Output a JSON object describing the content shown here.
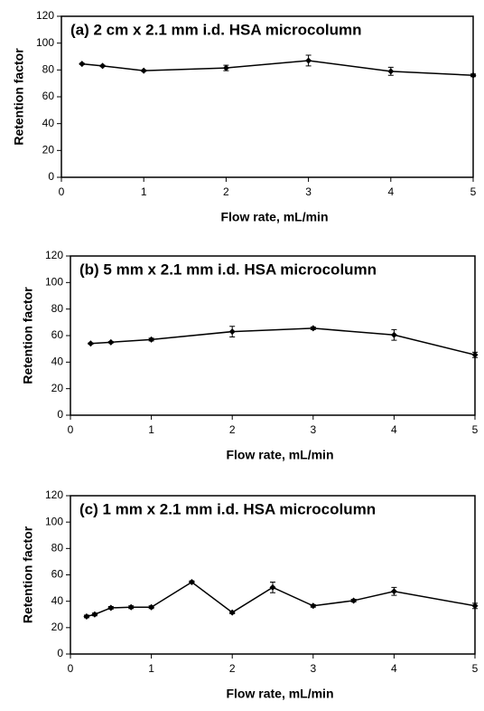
{
  "chart_data": [
    {
      "type": "line",
      "title": "(a) 2 cm x 2.1 mm i.d. HSA microcolumn",
      "xlabel": "Flow rate, mL/min",
      "ylabel": "Retention factor",
      "x": [
        0.25,
        0.5,
        1,
        2,
        3,
        4,
        5
      ],
      "values": [
        84.5,
        83,
        79.5,
        81.5,
        87,
        79,
        76
      ],
      "errors": [
        0.5,
        0.5,
        0.5,
        2,
        4,
        3,
        1
      ],
      "color": "#000000",
      "xlim": [
        0,
        5
      ],
      "ylim": [
        0,
        120
      ],
      "xticks": [
        0,
        1,
        2,
        3,
        4,
        5
      ],
      "yticks": [
        0,
        20,
        40,
        60,
        80,
        100,
        120
      ]
    },
    {
      "type": "line",
      "title": "(b) 5 mm x 2.1 mm i.d. HSA microcolumn",
      "xlabel": "Flow rate, mL/min",
      "ylabel": "Retention factor",
      "x": [
        0.25,
        0.5,
        1,
        2,
        3,
        4,
        5
      ],
      "values": [
        54,
        55,
        57,
        63,
        65.5,
        60.5,
        45.5
      ],
      "errors": [
        0.5,
        0.5,
        1,
        4,
        1,
        4,
        2
      ],
      "color": "#000000",
      "xlim": [
        0,
        5
      ],
      "ylim": [
        0,
        120
      ],
      "xticks": [
        0,
        1,
        2,
        3,
        4,
        5
      ],
      "yticks": [
        0,
        20,
        40,
        60,
        80,
        100,
        120
      ]
    },
    {
      "type": "line",
      "title": "(c) 1 mm x 2.1 mm i.d. HSA microcolumn",
      "xlabel": "Flow rate, mL/min",
      "ylabel": "Retention factor",
      "x": [
        0.2,
        0.3,
        0.5,
        0.75,
        1,
        1.5,
        2,
        2.5,
        3,
        3.5,
        4,
        5
      ],
      "values": [
        28.5,
        30,
        35,
        35.5,
        35.5,
        54.5,
        31.5,
        50.5,
        36.5,
        40.5,
        47.5,
        36.5
      ],
      "errors": [
        1,
        1,
        1,
        1,
        1,
        1,
        1,
        4,
        1,
        1,
        3,
        2
      ],
      "color": "#000000",
      "xlim": [
        0,
        5
      ],
      "ylim": [
        0,
        120
      ],
      "xticks": [
        0,
        1,
        2,
        3,
        4,
        5
      ],
      "yticks": [
        0,
        20,
        40,
        60,
        80,
        100,
        120
      ]
    }
  ]
}
